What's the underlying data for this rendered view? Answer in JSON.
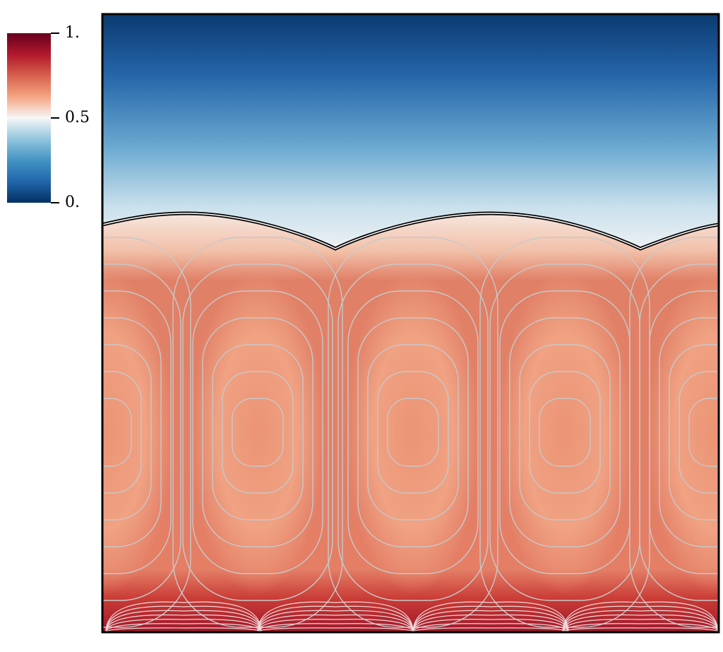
{
  "chart_data": {
    "type": "heatmap",
    "colorbar": {
      "clim": [
        0,
        1
      ],
      "ticks": [
        {
          "value": 1,
          "label": "1."
        },
        0.5,
        {
          "value": 0,
          "label": "0."
        }
      ],
      "colors": [
        "#053061",
        "#2166ac",
        "#4393c3",
        "#92c5de",
        "#f7f7f7",
        "#f4a582",
        "#d6604d",
        "#b2182b",
        "#67001f"
      ]
    }
  }
}
